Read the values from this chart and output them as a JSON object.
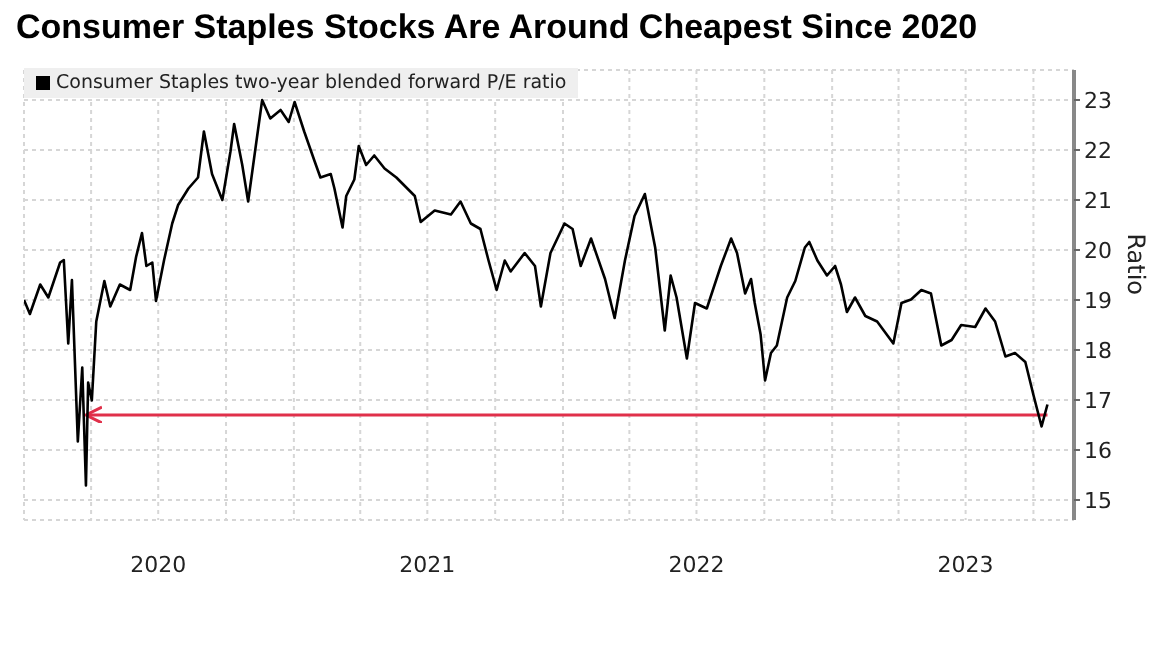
{
  "chart_data": {
    "type": "line",
    "title": "Consumer Staples Stocks Are Around Cheapest Since 2020",
    "ylabel": "Ratio",
    "x": [
      "2020-01-01",
      "2020-01-09",
      "2020-01-23",
      "2020-02-03",
      "2020-02-19",
      "2020-02-24",
      "2020-03-01",
      "2020-03-06",
      "2020-03-14",
      "2020-03-20",
      "2020-03-25",
      "2020-03-28",
      "2020-04-02",
      "2020-04-08",
      "2020-04-19",
      "2020-04-27",
      "2020-05-10",
      "2020-05-24",
      "2020-06-01",
      "2020-06-09",
      "2020-06-15",
      "2020-06-23",
      "2020-06-28",
      "2020-07-09",
      "2020-07-20",
      "2020-07-28",
      "2020-08-11",
      "2020-08-24",
      "2020-09-01",
      "2020-09-12",
      "2020-09-26",
      "2020-10-07",
      "2020-10-12",
      "2020-10-23",
      "2020-10-31",
      "2020-11-11",
      "2020-11-19",
      "2020-11-30",
      "2020-12-14",
      "2020-12-25",
      "2021-01-02",
      "2021-01-15",
      "2021-01-29",
      "2021-02-06",
      "2021-02-20",
      "2021-02-25",
      "2021-03-08",
      "2021-03-13",
      "2021-03-24",
      "2021-03-30",
      "2021-04-09",
      "2021-04-20",
      "2021-05-04",
      "2021-05-20",
      "2021-06-14",
      "2021-06-22",
      "2021-07-11",
      "2021-08-02",
      "2021-08-15",
      "2021-08-29",
      "2021-09-11",
      "2021-09-22",
      "2021-10-03",
      "2021-10-14",
      "2021-10-22",
      "2021-11-10",
      "2021-11-24",
      "2021-12-02",
      "2021-12-15",
      "2022-01-03",
      "2022-01-14",
      "2022-01-25",
      "2022-02-08",
      "2022-02-27",
      "2022-03-12",
      "2022-03-26",
      "2022-04-08",
      "2022-04-22",
      "2022-05-06",
      "2022-05-19",
      "2022-05-27",
      "2022-06-04",
      "2022-06-18",
      "2022-06-29",
      "2022-07-15",
      "2022-08-03",
      "2022-08-17",
      "2022-08-25",
      "2022-09-05",
      "2022-09-13",
      "2022-09-18",
      "2022-09-26",
      "2022-10-02",
      "2022-10-10",
      "2022-10-18",
      "2022-11-01",
      "2022-11-12",
      "2022-11-25",
      "2022-12-01",
      "2022-12-12",
      "2022-12-25",
      "2023-01-05",
      "2023-01-13",
      "2023-01-21",
      "2023-02-01",
      "2023-02-15",
      "2023-03-03",
      "2023-03-25",
      "2023-04-05",
      "2023-04-18",
      "2023-05-02",
      "2023-05-15",
      "2023-05-29",
      "2023-06-12",
      "2023-06-25",
      "2023-07-14",
      "2023-07-28",
      "2023-08-10",
      "2023-08-24",
      "2023-09-06",
      "2023-09-20",
      "2023-10-01",
      "2023-10-12",
      "2023-10-20"
    ],
    "series": [
      {
        "name": "Consumer Staples two-year blended forward P/E ratio",
        "color": "#000000",
        "values": [
          19.0,
          18.72,
          19.31,
          19.05,
          19.75,
          19.8,
          18.13,
          19.4,
          16.17,
          17.65,
          15.29,
          17.35,
          16.99,
          18.57,
          19.38,
          18.87,
          19.31,
          19.2,
          19.86,
          20.34,
          19.68,
          19.75,
          18.98,
          19.8,
          20.53,
          20.9,
          21.23,
          21.45,
          22.37,
          21.52,
          21.0,
          21.97,
          22.52,
          21.7,
          20.97,
          22.15,
          23.0,
          22.63,
          22.8,
          22.56,
          22.96,
          22.37,
          21.78,
          21.45,
          21.52,
          21.23,
          20.45,
          21.08,
          21.41,
          22.08,
          21.7,
          21.89,
          21.63,
          21.45,
          21.08,
          20.56,
          20.79,
          20.71,
          20.97,
          20.53,
          20.42,
          19.79,
          19.2,
          19.79,
          19.57,
          19.94,
          19.68,
          18.87,
          19.94,
          20.53,
          20.42,
          19.68,
          20.23,
          19.42,
          18.64,
          19.79,
          20.68,
          21.12,
          20.05,
          18.39,
          19.49,
          19.05,
          17.83,
          18.94,
          18.83,
          19.68,
          20.23,
          19.94,
          19.13,
          19.42,
          18.94,
          18.31,
          17.39,
          17.94,
          18.09,
          19.05,
          19.38,
          20.05,
          20.16,
          19.79,
          19.49,
          19.68,
          19.31,
          18.76,
          19.05,
          18.68,
          18.57,
          18.13,
          18.94,
          19.01,
          19.2,
          19.13,
          18.09,
          18.2,
          18.5,
          18.46,
          18.83,
          18.57,
          17.87,
          17.94,
          17.76,
          17.1,
          16.47,
          16.91
        ]
      }
    ],
    "xlim": [
      "2020-01-01",
      "2023-11-25"
    ],
    "xticks": [
      {
        "value": "2020-01-01",
        "label": null
      },
      {
        "value": "2020-04-01",
        "label": null
      },
      {
        "value": "2020-07-01",
        "label": "2020"
      },
      {
        "value": "2020-10-01",
        "label": null
      },
      {
        "value": "2021-01-01",
        "label": null
      },
      {
        "value": "2021-04-01",
        "label": null
      },
      {
        "value": "2021-07-01",
        "label": "2021"
      },
      {
        "value": "2021-10-01",
        "label": null
      },
      {
        "value": "2022-01-01",
        "label": null
      },
      {
        "value": "2022-04-01",
        "label": null
      },
      {
        "value": "2022-07-01",
        "label": "2022"
      },
      {
        "value": "2022-10-01",
        "label": null
      },
      {
        "value": "2023-01-01",
        "label": null
      },
      {
        "value": "2023-04-01",
        "label": null
      },
      {
        "value": "2023-07-01",
        "label": "2023"
      },
      {
        "value": "2023-10-01",
        "label": null
      }
    ],
    "ylim": [
      14.6,
      23.6
    ],
    "yticks": [
      15,
      16,
      17,
      18,
      19,
      20,
      21,
      22,
      23
    ],
    "ref_lines": [
      {
        "axis": "y",
        "value": 16.7,
        "color": "#e0304a"
      }
    ],
    "grid": true,
    "legend": "top left",
    "marker": "none",
    "line_style": "solid"
  }
}
